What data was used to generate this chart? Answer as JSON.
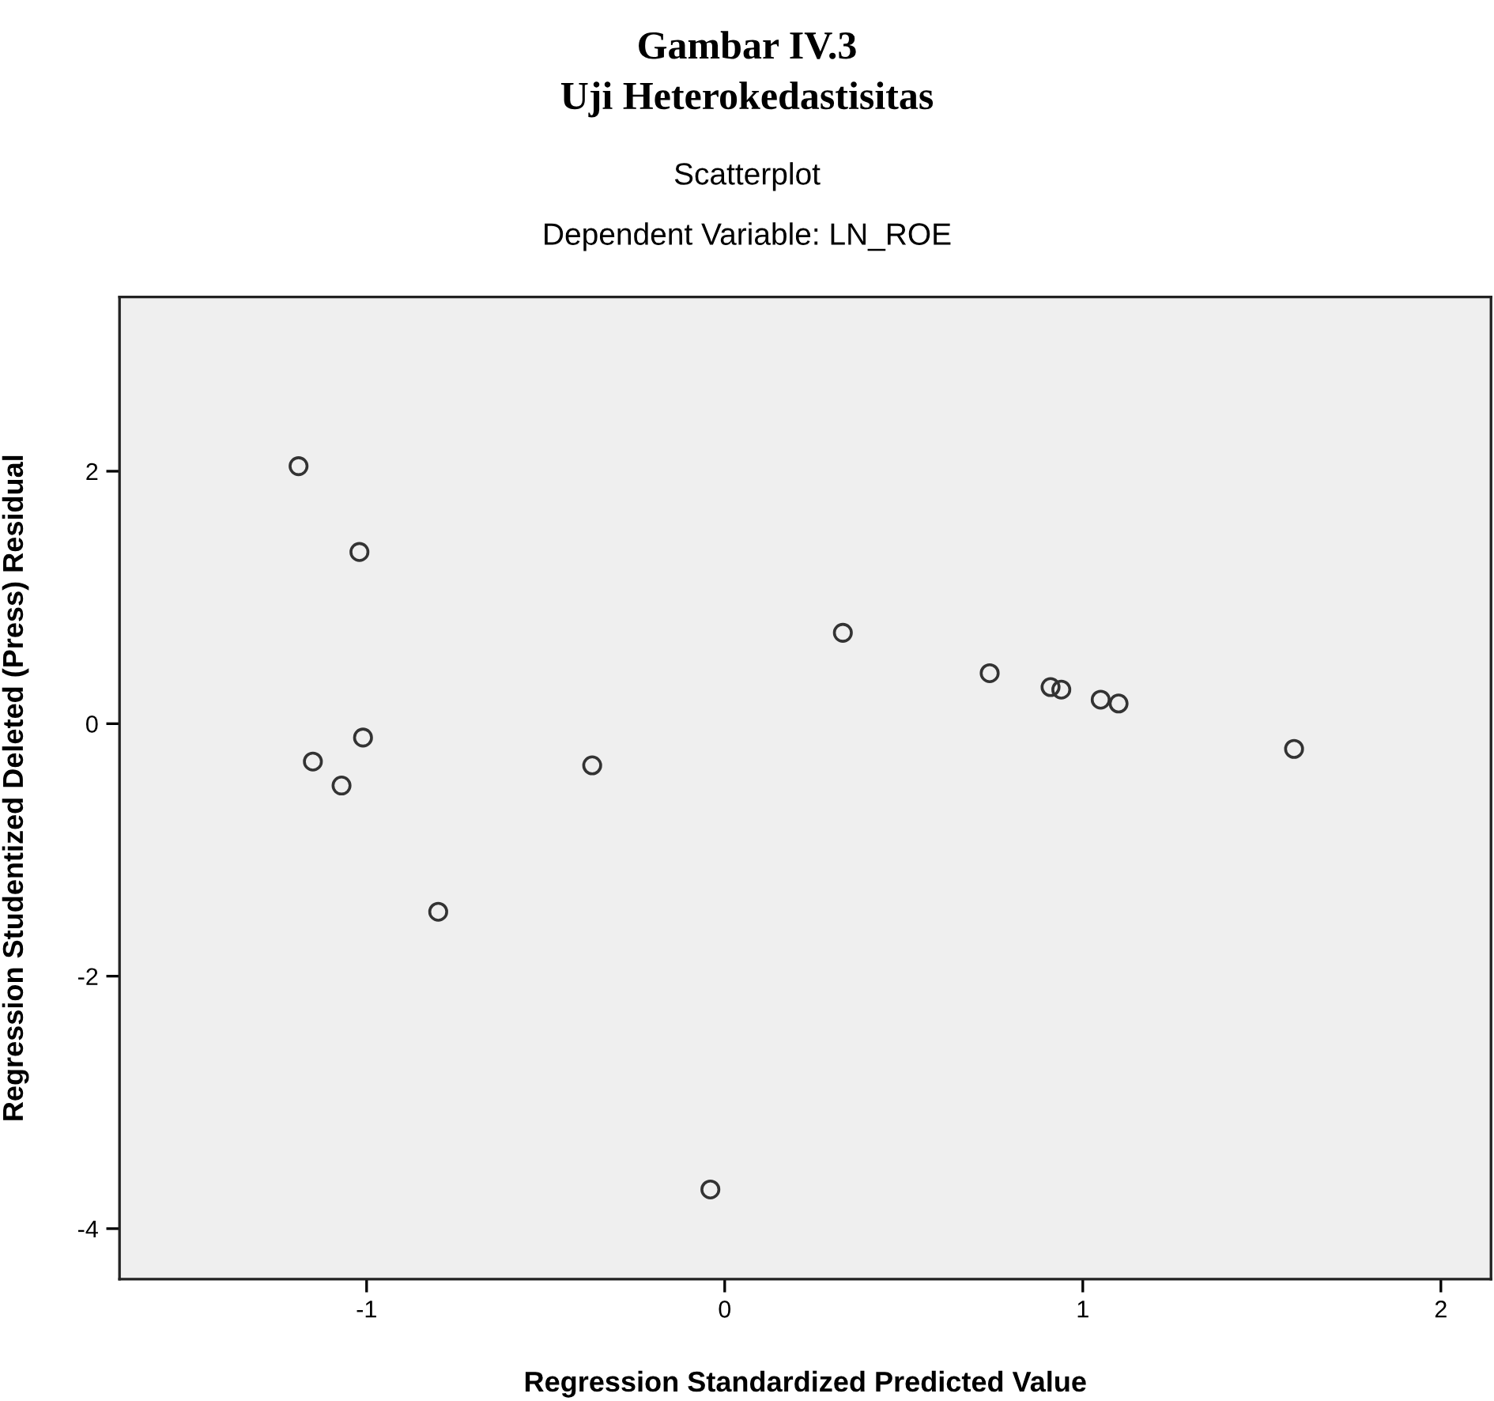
{
  "chart_data": {
    "type": "scatter",
    "title": "Gambar IV.3",
    "subtitle": "Uji Heterokedastisitas",
    "annotations": [
      "Scatterplot",
      "Dependent Variable: LN_ROE"
    ],
    "xlabel": "Regression Standardized Predicted Value",
    "ylabel": "Regression Studentized Deleted (Press) Residual",
    "x": [
      -1.19,
      -1.02,
      -1.01,
      -1.15,
      -1.07,
      -0.37,
      -0.8,
      -0.04,
      0.33,
      0.74,
      0.91,
      0.94,
      1.05,
      1.1,
      1.59
    ],
    "series": [
      {
        "color": "#333333",
        "values": [
          2.04,
          1.36,
          -0.11,
          -0.3,
          -0.49,
          -0.33,
          -1.49,
          -3.69,
          0.72,
          0.4,
          0.29,
          0.27,
          0.19,
          0.16,
          -0.2
        ]
      }
    ],
    "xlim": [
      -1.69,
      2.14
    ],
    "ylim": [
      -4.4,
      3.38
    ],
    "xticks": [
      {
        "value": -1,
        "label": "-1"
      },
      0,
      1,
      2
    ],
    "yticks": [
      {
        "value": -4,
        "label": "-4"
      },
      {
        "value": -2,
        "label": "-2"
      },
      0,
      2
    ],
    "marker": "circle",
    "grid": false,
    "legend": false
  }
}
